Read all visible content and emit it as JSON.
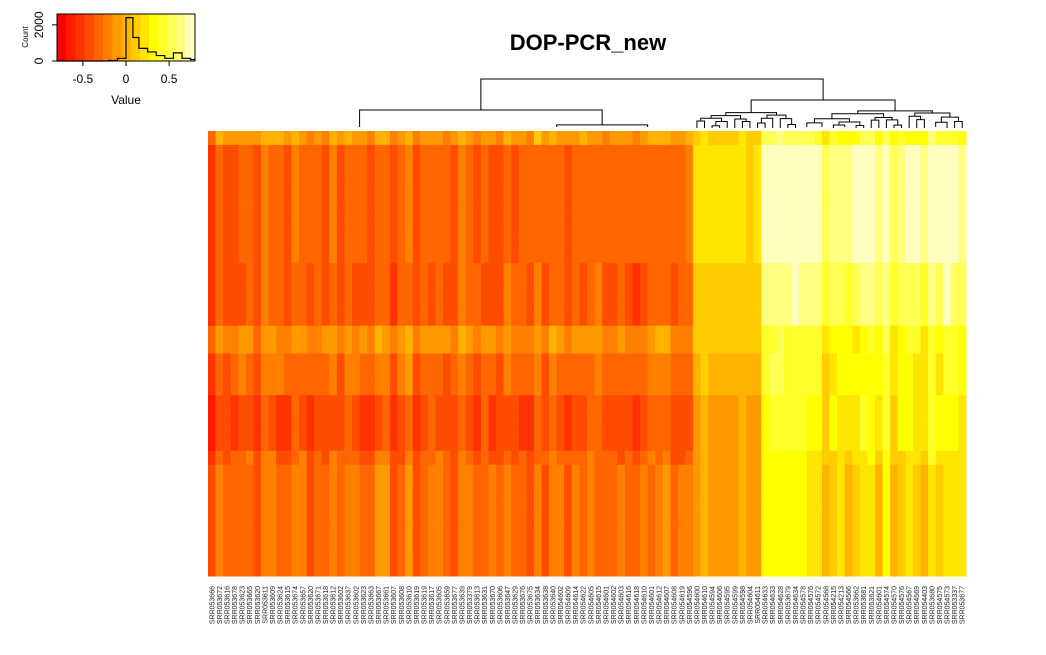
{
  "chart_data": {
    "type": "heatmap",
    "title": "DOP-PCR_new",
    "color_key": {
      "xlabel": "Value",
      "ylabel": "Count",
      "x_ticks": [
        "-0.5",
        "0",
        "0.5"
      ],
      "x_tick_values": [
        -0.5,
        0,
        0.5
      ],
      "y_ticks": [
        "0",
        "2000"
      ],
      "y_tick_values": [
        0,
        2000
      ],
      "xlim": [
        -0.8,
        0.8
      ],
      "ylim": [
        0,
        2600
      ],
      "palette": [
        "#FF0000",
        "#FF1A00",
        "#FF3300",
        "#FF4D00",
        "#FF6600",
        "#FF8000",
        "#FF9900",
        "#FFB300",
        "#FFCC00",
        "#FFE500",
        "#FFFF00",
        "#FFFF2A",
        "#FFFF55",
        "#FFFF80",
        "#FFFFBF"
      ],
      "histogram": [
        {
          "x": -0.8,
          "count": 0
        },
        {
          "x": -0.6,
          "count": 0
        },
        {
          "x": -0.4,
          "count": 0
        },
        {
          "x": -0.2,
          "count": 30
        },
        {
          "x": -0.1,
          "count": 150
        },
        {
          "x": 0,
          "count": 2400
        },
        {
          "x": 0.08,
          "count": 1300
        },
        {
          "x": 0.15,
          "count": 700
        },
        {
          "x": 0.25,
          "count": 500
        },
        {
          "x": 0.35,
          "count": 300
        },
        {
          "x": 0.45,
          "count": 150
        },
        {
          "x": 0.55,
          "count": 450
        },
        {
          "x": 0.65,
          "count": 150
        },
        {
          "x": 0.75,
          "count": 80
        }
      ]
    },
    "columns": [
      "SRR053666",
      "SRR053672",
      "SRR053616",
      "SRR053678",
      "SRR053623",
      "SRR053665",
      "SRR053620",
      "SRR053611",
      "SRR053609",
      "SRR053624",
      "SRR053615",
      "SRR053674",
      "SRR053657",
      "SRR053620",
      "SRR053671",
      "SRR053618",
      "SRR053612",
      "SRR053602",
      "SRR053637",
      "SRR053602",
      "SRR053623",
      "SRR053663",
      "SRR053667",
      "SRR053661",
      "SRR053607",
      "SRR053608",
      "SRR053610",
      "SRR053619",
      "SRR053619",
      "SRR053617",
      "SRR053605",
      "SRR053659",
      "SRR053677",
      "SRR053639",
      "SRR053379",
      "SRR053613",
      "SRR053631",
      "SRR053670",
      "SRR053606",
      "SRR053647",
      "SRR053629",
      "SRR053676",
      "SRR053675",
      "SRR053634",
      "SRR053638",
      "SRR053640",
      "SRR054602",
      "SRR054609",
      "SRR054614",
      "SRR054622",
      "SRR054605",
      "SRR054615",
      "SRR054601",
      "SRR054602",
      "SRR054603",
      "SRR054616",
      "SRR054618",
      "SRR054610",
      "SRR054601",
      "SRR054612",
      "SRR054607",
      "SRR054608",
      "SRR054619",
      "SRR054596",
      "SRR054600",
      "SRR054610",
      "SRR054594",
      "SRR054606",
      "SRR054595",
      "SRR054599",
      "SRR054598",
      "SRR054604",
      "SRR054611",
      "SRR054633",
      "SRR054633",
      "SRR054628",
      "SRR053679",
      "SRR054634",
      "SRR054578",
      "SRR054576",
      "SRR054572",
      "SRR054568",
      "SRR054215",
      "SRR054213",
      "SRR054566",
      "SRR053662",
      "SRR053681",
      "SRR053621",
      "SRR054601",
      "SRR054574",
      "SRR054570",
      "SRR054576",
      "SRR054567",
      "SRR054569",
      "SRR054403",
      "SRR053680",
      "SRR054575",
      "SRR054573",
      "SRR053337",
      "SRR053677"
    ],
    "column_groups": [
      {
        "from": 0,
        "to": 63,
        "tone": "orange"
      },
      {
        "from": 64,
        "to": 72,
        "tone": "light-orange"
      },
      {
        "from": 73,
        "to": 99,
        "tone": "yellow"
      }
    ],
    "row_blocks": [
      {
        "rows": 2,
        "level_a": 0.45,
        "level_b": 0.75
      },
      {
        "rows": 17,
        "level_a": 0.3,
        "level_b": 0.95
      },
      {
        "rows": 9,
        "level_a": 0.28,
        "level_b": 0.85
      },
      {
        "rows": 4,
        "level_a": 0.42,
        "level_b": 0.72
      },
      {
        "rows": 6,
        "level_a": 0.32,
        "level_b": 0.7
      },
      {
        "rows": 8,
        "level_a": 0.24,
        "level_b": 0.68
      },
      {
        "rows": 2,
        "level_a": 0.3,
        "level_b": 0.62
      },
      {
        "rows": 16,
        "level_a": 0.33,
        "level_b": 0.6
      }
    ],
    "legend_position": "top-left"
  }
}
